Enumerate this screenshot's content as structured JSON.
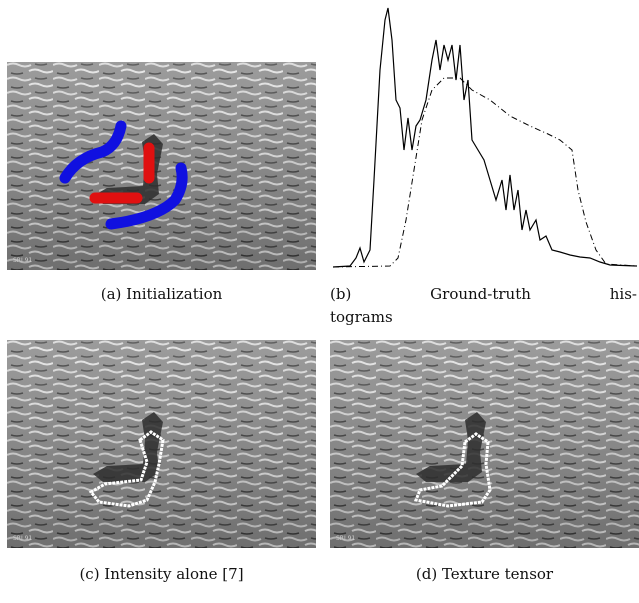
{
  "figure": {
    "panels": [
      {
        "caption": "(a) Initialization"
      },
      {
        "caption_lines": [
          "(b) Ground-truth his-",
          "tograms"
        ]
      },
      {
        "caption": "(c) Intensity alone [7]"
      },
      {
        "caption": "(d) Texture tensor"
      }
    ]
  }
}
